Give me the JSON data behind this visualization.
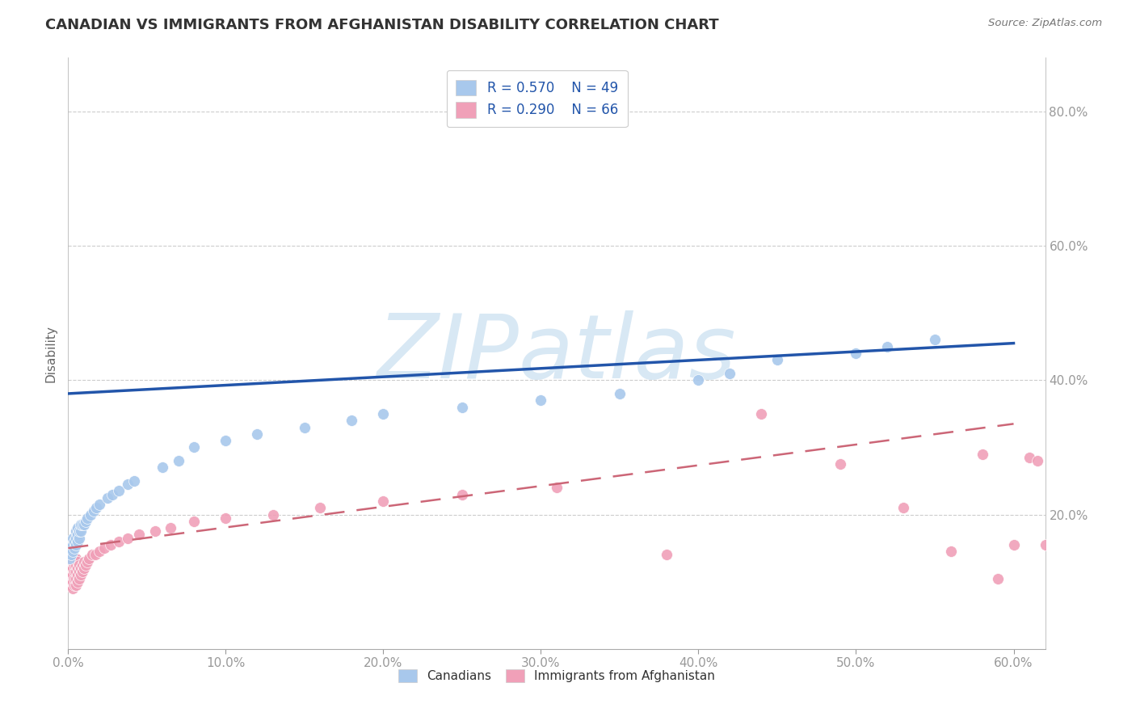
{
  "title": "CANADIAN VS IMMIGRANTS FROM AFGHANISTAN DISABILITY CORRELATION CHART",
  "source": "Source: ZipAtlas.com",
  "ylabel": "Disability",
  "xlim": [
    0.0,
    0.62
  ],
  "ylim": [
    0.0,
    0.88
  ],
  "yticks": [
    0.2,
    0.4,
    0.6,
    0.8
  ],
  "xticks": [
    0.0,
    0.1,
    0.2,
    0.3,
    0.4,
    0.5,
    0.6
  ],
  "xtick_labels": [
    "0.0%",
    "10.0%",
    "20.0%",
    "30.0%",
    "40.0%",
    "50.0%",
    "60.0%"
  ],
  "ytick_labels": [
    "20.0%",
    "40.0%",
    "60.0%",
    "80.0%"
  ],
  "canadian_R": 0.57,
  "canadian_N": 49,
  "afghan_R": 0.29,
  "afghan_N": 66,
  "canadian_color": "#A8C8EC",
  "afghan_color": "#F0A0B8",
  "canadian_line_color": "#2255AA",
  "afghan_line_color": "#CC6677",
  "background_color": "#FFFFFF",
  "grid_color": "#CCCCCC",
  "title_color": "#333333",
  "tick_color": "#5599CC",
  "watermark": "ZIPatlas",
  "watermark_color": "#D8E8F4",
  "canadians_x": [
    0.001,
    0.001,
    0.002,
    0.002,
    0.003,
    0.003,
    0.003,
    0.004,
    0.004,
    0.005,
    0.005,
    0.005,
    0.006,
    0.006,
    0.006,
    0.007,
    0.007,
    0.008,
    0.008,
    0.009,
    0.01,
    0.011,
    0.012,
    0.014,
    0.016,
    0.018,
    0.02,
    0.025,
    0.028,
    0.032,
    0.038,
    0.042,
    0.06,
    0.07,
    0.08,
    0.1,
    0.12,
    0.15,
    0.18,
    0.2,
    0.25,
    0.3,
    0.35,
    0.4,
    0.42,
    0.45,
    0.5,
    0.52,
    0.55
  ],
  "canadians_y": [
    0.135,
    0.145,
    0.14,
    0.15,
    0.145,
    0.155,
    0.165,
    0.15,
    0.16,
    0.155,
    0.165,
    0.175,
    0.16,
    0.17,
    0.18,
    0.165,
    0.175,
    0.175,
    0.185,
    0.185,
    0.185,
    0.19,
    0.195,
    0.2,
    0.205,
    0.21,
    0.215,
    0.225,
    0.23,
    0.235,
    0.245,
    0.25,
    0.27,
    0.28,
    0.3,
    0.31,
    0.32,
    0.33,
    0.34,
    0.35,
    0.36,
    0.37,
    0.38,
    0.4,
    0.41,
    0.43,
    0.44,
    0.45,
    0.46
  ],
  "afghans_x": [
    0.001,
    0.001,
    0.001,
    0.002,
    0.002,
    0.002,
    0.002,
    0.003,
    0.003,
    0.003,
    0.003,
    0.003,
    0.004,
    0.004,
    0.004,
    0.004,
    0.004,
    0.005,
    0.005,
    0.005,
    0.005,
    0.005,
    0.006,
    0.006,
    0.006,
    0.006,
    0.007,
    0.007,
    0.007,
    0.008,
    0.008,
    0.009,
    0.009,
    0.01,
    0.01,
    0.011,
    0.012,
    0.013,
    0.015,
    0.017,
    0.02,
    0.023,
    0.027,
    0.032,
    0.038,
    0.045,
    0.055,
    0.065,
    0.08,
    0.1,
    0.13,
    0.16,
    0.2,
    0.25,
    0.31,
    0.38,
    0.44,
    0.49,
    0.53,
    0.56,
    0.58,
    0.59,
    0.6,
    0.61,
    0.615,
    0.62
  ],
  "afghans_y": [
    0.1,
    0.11,
    0.12,
    0.095,
    0.105,
    0.115,
    0.125,
    0.09,
    0.1,
    0.11,
    0.12,
    0.13,
    0.095,
    0.105,
    0.115,
    0.125,
    0.135,
    0.095,
    0.105,
    0.115,
    0.125,
    0.135,
    0.1,
    0.11,
    0.12,
    0.13,
    0.105,
    0.115,
    0.125,
    0.11,
    0.12,
    0.115,
    0.125,
    0.12,
    0.13,
    0.125,
    0.13,
    0.135,
    0.14,
    0.14,
    0.145,
    0.15,
    0.155,
    0.16,
    0.165,
    0.17,
    0.175,
    0.18,
    0.19,
    0.195,
    0.2,
    0.21,
    0.22,
    0.23,
    0.24,
    0.14,
    0.35,
    0.275,
    0.21,
    0.145,
    0.29,
    0.105,
    0.155,
    0.285,
    0.28,
    0.155
  ],
  "canadian_line_x0": 0.0,
  "canadian_line_y0": 0.38,
  "canadian_line_x1": 0.6,
  "canadian_line_y1": 0.455,
  "afghan_line_x0": 0.0,
  "afghan_line_y0": 0.15,
  "afghan_line_x1": 0.6,
  "afghan_line_y1": 0.335
}
